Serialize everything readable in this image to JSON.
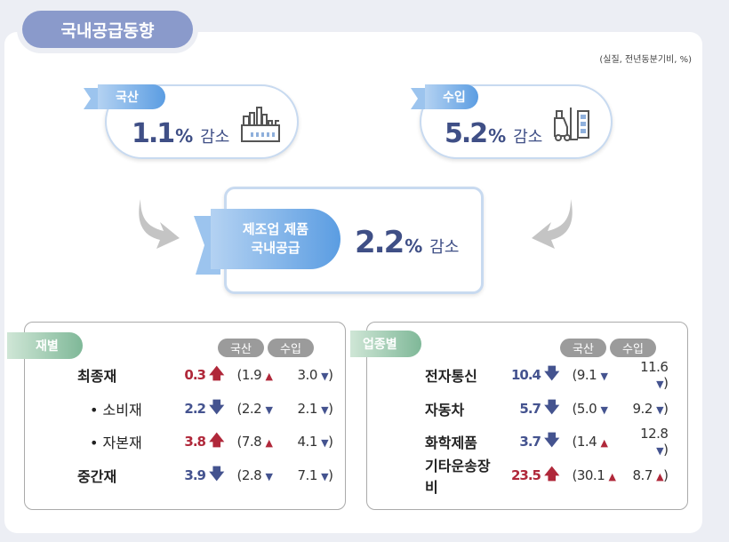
{
  "title": "국내공급동향",
  "note": "(실질, 전년동분기비, %)",
  "domestic": {
    "label": "국산",
    "value": "1.1",
    "unit": "%",
    "change": "감소",
    "icon": "factory-icon"
  },
  "import": {
    "label": "수입",
    "value": "5.2",
    "unit": "%",
    "change": "감소",
    "icon": "forklift-icon"
  },
  "total": {
    "label_line1": "제조업 제품",
    "label_line2": "국내공급",
    "value": "2.2",
    "unit": "%",
    "change": "감소"
  },
  "colors": {
    "title": "#8a9acb",
    "navy": "#3f4f86",
    "up": "#b0283a",
    "down": "#44538f"
  },
  "by_goods": {
    "tag": "재별",
    "col1": "국산",
    "col2": "수입",
    "rows": [
      {
        "name": "최종재",
        "bullet": false,
        "value": "0.3",
        "dir": "up",
        "dom": "1.9",
        "dom_dir": "up",
        "imp": "3.0",
        "imp_dir": "down"
      },
      {
        "name": "소비재",
        "bullet": true,
        "value": "2.2",
        "dir": "down",
        "dom": "2.2",
        "dom_dir": "down",
        "imp": "2.1",
        "imp_dir": "down"
      },
      {
        "name": "자본재",
        "bullet": true,
        "value": "3.8",
        "dir": "up",
        "dom": "7.8",
        "dom_dir": "up",
        "imp": "4.1",
        "imp_dir": "down"
      },
      {
        "name": "중간재",
        "bullet": false,
        "value": "3.9",
        "dir": "down",
        "dom": "2.8",
        "dom_dir": "down",
        "imp": "7.1",
        "imp_dir": "down"
      }
    ]
  },
  "by_industry": {
    "tag": "업종별",
    "col1": "국산",
    "col2": "수입",
    "rows": [
      {
        "name": "전자통신",
        "bullet": false,
        "value": "10.4",
        "dir": "down",
        "dom": "9.1",
        "dom_dir": "down",
        "imp": "11.6",
        "imp_dir": "down"
      },
      {
        "name": "자동차",
        "bullet": false,
        "value": "5.7",
        "dir": "down",
        "dom": "5.0",
        "dom_dir": "down",
        "imp": "9.2",
        "imp_dir": "down"
      },
      {
        "name": "화학제품",
        "bullet": false,
        "value": "3.7",
        "dir": "down",
        "dom": "1.4",
        "dom_dir": "up",
        "imp": "12.8",
        "imp_dir": "down"
      },
      {
        "name": "기타운송장비",
        "bullet": false,
        "value": "23.5",
        "dir": "up",
        "dom": "30.1",
        "dom_dir": "up",
        "imp": "8.7",
        "imp_dir": "up"
      }
    ]
  }
}
